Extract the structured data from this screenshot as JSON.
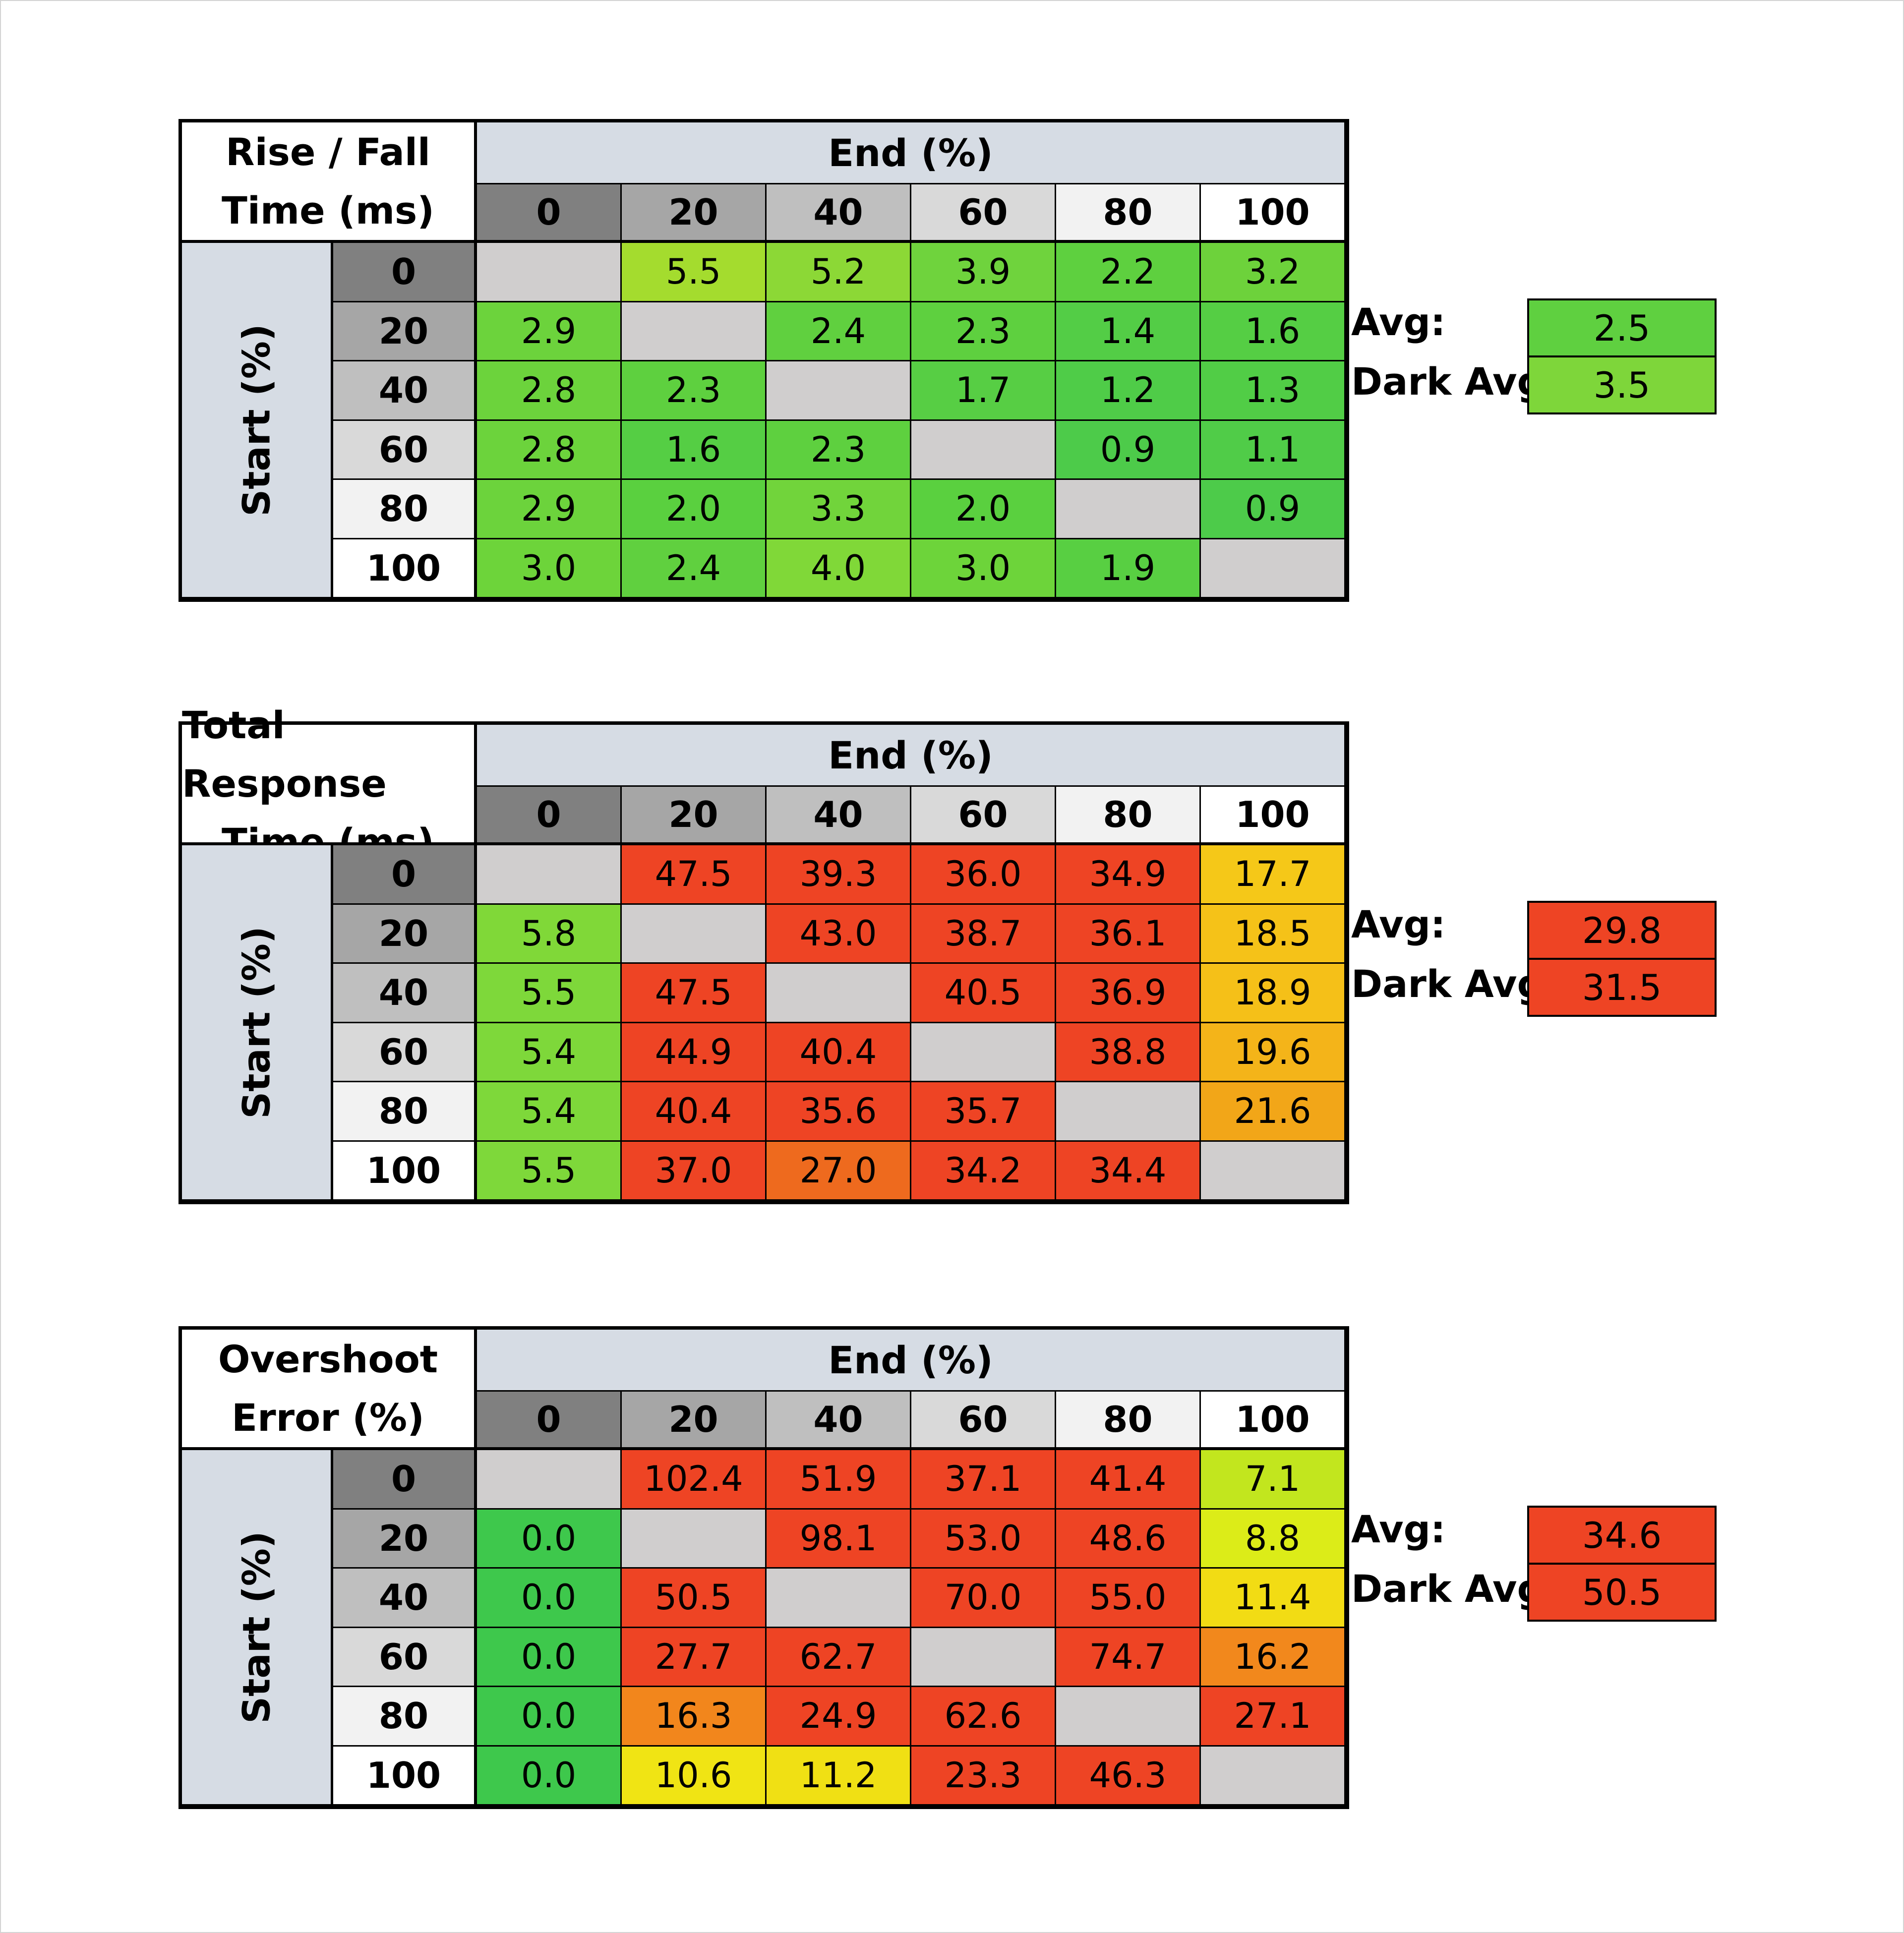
{
  "end_label": "End (%)",
  "start_label": "Start (%)",
  "avg_label": "Avg:",
  "dark_avg_label": "Dark Avg:",
  "levels": [
    "0",
    "20",
    "40",
    "60",
    "80",
    "100"
  ],
  "level_colors": [
    "#808080",
    "#a6a6a6",
    "#bfbfbf",
    "#d9d9d9",
    "#f2f2f2",
    "#ffffff"
  ],
  "diag_color": "#d0cece",
  "chart_data": [
    {
      "type": "heatmap",
      "title_lines": [
        "Rise / Fall",
        "Time (ms)"
      ],
      "xlabel": "End (%)",
      "ylabel": "Start (%)",
      "categories": [
        "0",
        "20",
        "40",
        "60",
        "80",
        "100"
      ],
      "rows": [
        [
          null,
          "5.5",
          "5.2",
          "3.9",
          "2.2",
          "3.2"
        ],
        [
          "2.9",
          null,
          "2.4",
          "2.3",
          "1.4",
          "1.6"
        ],
        [
          "2.8",
          "2.3",
          null,
          "1.7",
          "1.2",
          "1.3"
        ],
        [
          "2.8",
          "1.6",
          "2.3",
          null,
          "0.9",
          "1.1"
        ],
        [
          "2.9",
          "2.0",
          "3.3",
          "2.0",
          null,
          "0.9"
        ],
        [
          "3.0",
          "2.4",
          "4.0",
          "3.0",
          "1.9",
          null
        ]
      ],
      "colors": [
        [
          null,
          "#a4dc2e",
          "#8cd836",
          "#6fd33d",
          "#5ed03f",
          "#6dd23b"
        ],
        [
          "#6cd33c",
          null,
          "#60d03f",
          "#5ed03f",
          "#53cd46",
          "#55ce44"
        ],
        [
          "#6cd33c",
          "#5ed03f",
          null,
          "#57ce44",
          "#4fcc48",
          "#51cd46"
        ],
        [
          "#6cd33c",
          "#55ce44",
          "#5ed03f",
          null,
          "#4dcb4a",
          "#50cc48"
        ],
        [
          "#6cd33c",
          "#5ad03f",
          "#71d43b",
          "#5ad03f",
          null,
          "#4dcb4a"
        ],
        [
          "#6dd43a",
          "#60d03f",
          "#80d838",
          "#6dd43a",
          "#58cf42",
          null
        ]
      ],
      "avg": "2.5",
      "avg_color": "#5fd040",
      "dark_avg": "3.5",
      "dark_avg_color": "#7ed63a"
    },
    {
      "type": "heatmap",
      "title_lines": [
        "Total Response",
        "Time (ms)"
      ],
      "xlabel": "End (%)",
      "ylabel": "Start (%)",
      "categories": [
        "0",
        "20",
        "40",
        "60",
        "80",
        "100"
      ],
      "rows": [
        [
          null,
          "47.5",
          "39.3",
          "36.0",
          "34.9",
          "17.7"
        ],
        [
          "5.8",
          null,
          "43.0",
          "38.7",
          "36.1",
          "18.5"
        ],
        [
          "5.5",
          "47.5",
          null,
          "40.5",
          "36.9",
          "18.9"
        ],
        [
          "5.4",
          "44.9",
          "40.4",
          null,
          "38.8",
          "19.6"
        ],
        [
          "5.4",
          "40.4",
          "35.6",
          "35.7",
          null,
          "21.6"
        ],
        [
          "5.5",
          "37.0",
          "27.0",
          "34.2",
          "34.4",
          null
        ]
      ],
      "colors": [
        [
          null,
          "#ee4424",
          "#ee4424",
          "#ee4424",
          "#ee4424",
          "#f5c818"
        ],
        [
          "#80d838",
          null,
          "#ee4424",
          "#ee4424",
          "#ee4424",
          "#f5c218"
        ],
        [
          "#7ed83a",
          "#ee4424",
          null,
          "#ee4424",
          "#ee4424",
          "#f5c018"
        ],
        [
          "#7ed83a",
          "#ee4424",
          "#ee4424",
          null,
          "#ee4424",
          "#f4b419"
        ],
        [
          "#7ed83a",
          "#ee4424",
          "#ee4424",
          "#ee4424",
          null,
          "#f2a618"
        ],
        [
          "#7ed83a",
          "#ee4424",
          "#ee6a1e",
          "#ee4424",
          "#ee4424",
          null
        ]
      ],
      "avg": "29.8",
      "avg_color": "#ee4424",
      "dark_avg": "31.5",
      "dark_avg_color": "#ee4424"
    },
    {
      "type": "heatmap",
      "title_lines": [
        "Overshoot",
        "Error (%)"
      ],
      "xlabel": "End (%)",
      "ylabel": "Start (%)",
      "categories": [
        "0",
        "20",
        "40",
        "60",
        "80",
        "100"
      ],
      "rows": [
        [
          null,
          "102.4",
          "51.9",
          "37.1",
          "41.4",
          "7.1"
        ],
        [
          "0.0",
          null,
          "98.1",
          "53.0",
          "48.6",
          "8.8"
        ],
        [
          "0.0",
          "50.5",
          null,
          "70.0",
          "55.0",
          "11.4"
        ],
        [
          "0.0",
          "27.7",
          "62.7",
          null,
          "74.7",
          "16.2"
        ],
        [
          "0.0",
          "16.3",
          "24.9",
          "62.6",
          null,
          "27.1"
        ],
        [
          "0.0",
          "10.6",
          "11.2",
          "23.3",
          "46.3",
          null
        ]
      ],
      "colors": [
        [
          null,
          "#ee4424",
          "#ee4424",
          "#ee4424",
          "#ee4424",
          "#c2e61e"
        ],
        [
          "#3ec84c",
          null,
          "#ee4424",
          "#ee4424",
          "#ee4424",
          "#dcec18"
        ],
        [
          "#3ec84c",
          "#ee4424",
          null,
          "#ee4424",
          "#ee4424",
          "#f2dc14"
        ],
        [
          "#3ec84c",
          "#ee4424",
          "#ee4424",
          null,
          "#ee4424",
          "#f2881c"
        ],
        [
          "#3ec84c",
          "#f2861c",
          "#ee4424",
          "#ee4424",
          null,
          "#ee4424"
        ],
        [
          "#3ec84c",
          "#f0e414",
          "#f0e014",
          "#ee4424",
          "#ee4424",
          null
        ]
      ],
      "avg": "34.6",
      "avg_color": "#ee4424",
      "dark_avg": "50.5",
      "dark_avg_color": "#ee4424"
    }
  ]
}
